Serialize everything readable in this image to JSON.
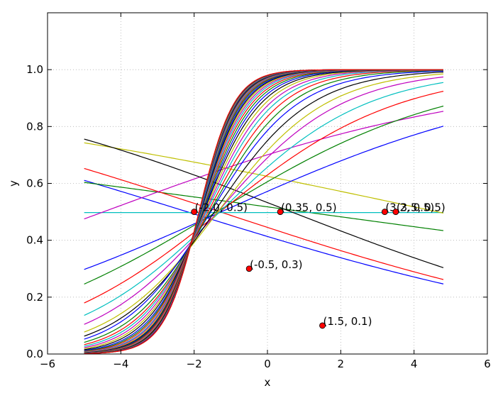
{
  "chart_data": {
    "type": "line",
    "title": "",
    "xlabel": "x",
    "ylabel": "y",
    "xlim": [
      -6,
      6
    ],
    "ylim": [
      0.0,
      1.2
    ],
    "xticks": [
      -6,
      -4,
      -2,
      0,
      2,
      4,
      6
    ],
    "yticks": [
      0.0,
      0.2,
      0.4,
      0.6,
      0.8,
      1.0
    ],
    "grid": true,
    "curve_domain": [
      -5,
      4.8
    ],
    "colors": {
      "palette": [
        "#0000ff",
        "#008000",
        "#ff0000",
        "#00bfbf",
        "#bf00bf",
        "#bfbf00",
        "#000000"
      ],
      "point_fill": "#ff0000",
      "point_edge": "#000000",
      "grid": "#b0b0b0"
    },
    "series_description": "logistic curves y = 1/(1+exp(-(w*x+b)))",
    "series": [
      {
        "w": -0.16,
        "b": -0.35
      },
      {
        "w": -0.07,
        "b": 0.07
      },
      {
        "w": -0.17,
        "b": -0.22
      },
      {
        "w": 0.0,
        "b": -0.01
      },
      {
        "w": 0.19,
        "b": 0.85
      },
      {
        "w": -0.11,
        "b": 0.51
      },
      {
        "w": -0.2,
        "b": 0.13
      },
      {
        "w": 0.23,
        "b": 0.29
      },
      {
        "w": 0.31,
        "b": 0.43
      },
      {
        "w": 0.41,
        "b": 0.53
      },
      {
        "w": 0.5,
        "b": 0.65
      },
      {
        "w": 0.59,
        "b": 0.8
      },
      {
        "w": 0.68,
        "b": 0.92
      },
      {
        "w": 0.76,
        "b": 1.1
      },
      {
        "w": 0.84,
        "b": 1.3
      },
      {
        "w": 0.92,
        "b": 1.45
      },
      {
        "w": 1.0,
        "b": 1.62
      },
      {
        "w": 1.07,
        "b": 1.78
      },
      {
        "w": 1.14,
        "b": 1.93
      },
      {
        "w": 1.21,
        "b": 2.08
      },
      {
        "w": 1.28,
        "b": 2.23
      },
      {
        "w": 1.35,
        "b": 2.37
      },
      {
        "w": 1.41,
        "b": 2.5
      },
      {
        "w": 1.47,
        "b": 2.63
      },
      {
        "w": 1.53,
        "b": 2.75
      },
      {
        "w": 1.58,
        "b": 2.86
      },
      {
        "w": 1.63,
        "b": 2.96
      },
      {
        "w": 1.68,
        "b": 3.06
      },
      {
        "w": 1.72,
        "b": 3.15
      },
      {
        "w": 1.76,
        "b": 3.24
      },
      {
        "w": 1.8,
        "b": 3.32
      },
      {
        "w": 1.84,
        "b": 3.39
      },
      {
        "w": 1.87,
        "b": 3.46
      },
      {
        "w": 1.9,
        "b": 3.52
      },
      {
        "w": 1.93,
        "b": 3.58
      },
      {
        "w": 1.96,
        "b": 3.63
      },
      {
        "w": 1.98,
        "b": 3.68
      },
      {
        "w": 2.0,
        "b": 3.72
      },
      {
        "w": 2.02,
        "b": 3.76
      },
      {
        "w": 2.04,
        "b": 3.8
      },
      {
        "w": 2.06,
        "b": 3.83
      },
      {
        "w": 2.07,
        "b": 3.86
      },
      {
        "w": 2.08,
        "b": 3.88
      },
      {
        "w": 2.09,
        "b": 3.9
      },
      {
        "w": 2.1,
        "b": 3.92
      }
    ],
    "points": [
      {
        "x": -2.0,
        "y": 0.5,
        "label": "(-2.0, 0.5)"
      },
      {
        "x": 0.35,
        "y": 0.5,
        "label": "(0.35, 0.5)"
      },
      {
        "x": 3.2,
        "y": 0.5,
        "label": "(3.2, 0.5)"
      },
      {
        "x": 3.5,
        "y": 0.5,
        "label": "(3.5, 0.5)"
      },
      {
        "x": -0.5,
        "y": 0.3,
        "label": "(-0.5, 0.3)"
      },
      {
        "x": 1.5,
        "y": 0.1,
        "label": "(1.5, 0.1)"
      }
    ]
  }
}
